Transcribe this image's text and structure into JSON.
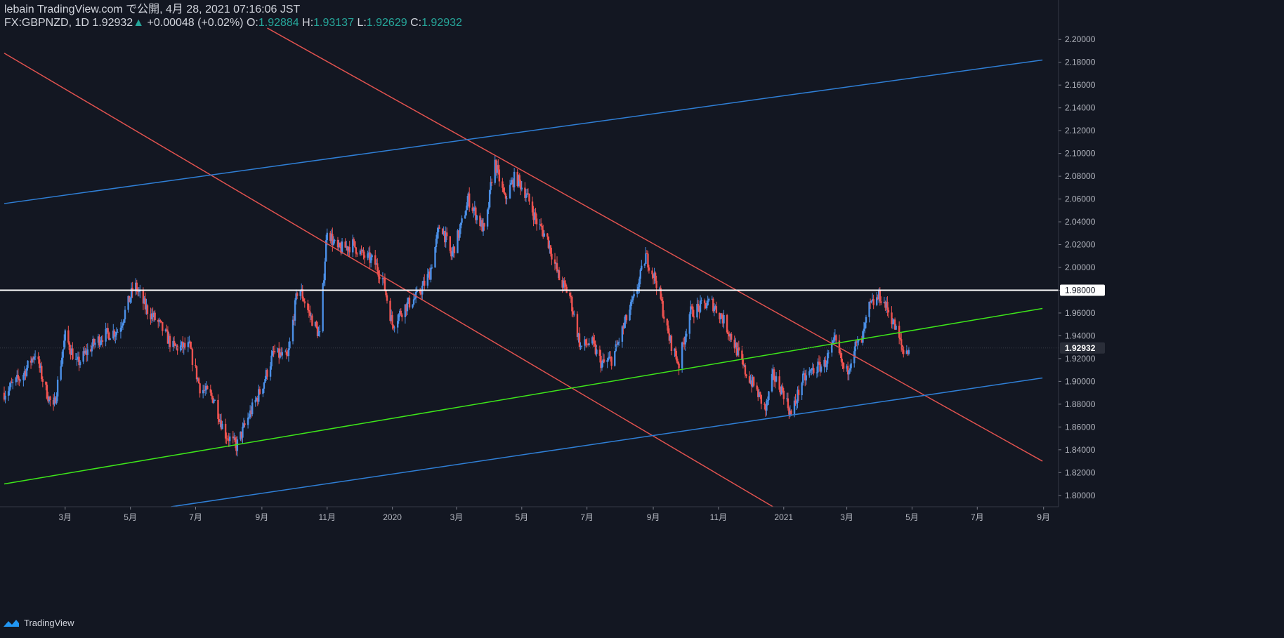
{
  "header": {
    "publish_line": "lebain TradingView.com で公開, 4月 28, 2021 07:16:06 JST",
    "symbol": "FX:GBPNZD, 1D",
    "last": "1.92932",
    "change": "+0.00048 (+0.02%)",
    "o_label": "O:",
    "o": "1.92884",
    "h_label": "H:",
    "h": "1.93137",
    "l_label": "L:",
    "l": "1.92629",
    "c_label": "C:",
    "c": "1.92932"
  },
  "footer": {
    "brand": "TradingView"
  },
  "colors": {
    "background": "#131722",
    "up": "#4b8fe6",
    "down": "#ef5350",
    "trend_red": "#e0524f",
    "trend_blue": "#2f7fd6",
    "trend_green": "#3ee61a",
    "horizontal": "#ffffff"
  },
  "chart_data": {
    "type": "candlestick",
    "symbol": "FX:GBPNZD",
    "interval": "1D",
    "ylim": [
      1.79,
      2.21
    ],
    "y_ticks": [
      "1.80000",
      "1.82000",
      "1.84000",
      "1.86000",
      "1.88000",
      "1.90000",
      "1.92000",
      "1.94000",
      "1.96000",
      "1.98000",
      "2.00000",
      "2.02000",
      "2.04000",
      "2.06000",
      "2.08000",
      "2.10000",
      "2.12000",
      "2.14000",
      "2.16000",
      "2.18000",
      "2.20000"
    ],
    "x_range": [
      "2019-01-03",
      "2021-09-15"
    ],
    "x_ticks": [
      {
        "label": "3月",
        "date": "2019-03-01"
      },
      {
        "label": "5月",
        "date": "2019-05-01"
      },
      {
        "label": "7月",
        "date": "2019-07-01"
      },
      {
        "label": "9月",
        "date": "2019-09-01"
      },
      {
        "label": "11月",
        "date": "2019-11-01"
      },
      {
        "label": "2020",
        "date": "2020-01-01"
      },
      {
        "label": "3月",
        "date": "2020-03-01"
      },
      {
        "label": "5月",
        "date": "2020-05-01"
      },
      {
        "label": "7月",
        "date": "2020-07-01"
      },
      {
        "label": "9月",
        "date": "2020-09-01"
      },
      {
        "label": "11月",
        "date": "2020-11-01"
      },
      {
        "label": "2021",
        "date": "2021-01-01"
      },
      {
        "label": "3月",
        "date": "2021-03-01"
      },
      {
        "label": "5月",
        "date": "2021-05-01"
      },
      {
        "label": "7月",
        "date": "2021-07-01"
      },
      {
        "label": "9月",
        "date": "2021-09-01"
      }
    ],
    "price_path": [
      [
        "2019-01-03",
        1.89
      ],
      [
        "2019-01-20",
        1.905
      ],
      [
        "2019-02-01",
        1.925
      ],
      [
        "2019-02-10",
        1.895
      ],
      [
        "2019-02-18",
        1.875
      ],
      [
        "2019-03-01",
        1.94
      ],
      [
        "2019-03-12",
        1.915
      ],
      [
        "2019-03-25",
        1.93
      ],
      [
        "2019-04-05",
        1.94
      ],
      [
        "2019-04-20",
        1.945
      ],
      [
        "2019-05-05",
        1.985
      ],
      [
        "2019-05-15",
        1.965
      ],
      [
        "2019-05-28",
        1.95
      ],
      [
        "2019-06-10",
        1.93
      ],
      [
        "2019-06-25",
        1.93
      ],
      [
        "2019-07-05",
        1.895
      ],
      [
        "2019-07-18",
        1.885
      ],
      [
        "2019-07-28",
        1.855
      ],
      [
        "2019-08-08",
        1.843
      ],
      [
        "2019-08-20",
        1.87
      ],
      [
        "2019-09-01",
        1.895
      ],
      [
        "2019-09-12",
        1.925
      ],
      [
        "2019-09-25",
        1.92
      ],
      [
        "2019-10-05",
        1.985
      ],
      [
        "2019-10-15",
        1.96
      ],
      [
        "2019-10-25",
        1.94
      ],
      [
        "2019-11-01",
        2.035
      ],
      [
        "2019-11-10",
        2.015
      ],
      [
        "2019-11-25",
        2.02
      ],
      [
        "2019-12-05",
        2.01
      ],
      [
        "2019-12-15",
        2.005
      ],
      [
        "2019-12-23",
        1.99
      ],
      [
        "2020-01-01",
        1.95
      ],
      [
        "2020-01-12",
        1.965
      ],
      [
        "2020-01-25",
        1.975
      ],
      [
        "2020-02-05",
        1.995
      ],
      [
        "2020-02-15",
        2.04
      ],
      [
        "2020-02-25",
        2.01
      ],
      [
        "2020-03-05",
        2.035
      ],
      [
        "2020-03-12",
        2.06
      ],
      [
        "2020-03-20",
        2.045
      ],
      [
        "2020-03-28",
        2.03
      ],
      [
        "2020-04-05",
        2.095
      ],
      [
        "2020-04-15",
        2.06
      ],
      [
        "2020-04-25",
        2.08
      ],
      [
        "2020-05-05",
        2.065
      ],
      [
        "2020-05-15",
        2.04
      ],
      [
        "2020-05-25",
        2.025
      ],
      [
        "2020-06-05",
        1.99
      ],
      [
        "2020-06-15",
        1.975
      ],
      [
        "2020-06-25",
        1.93
      ],
      [
        "2020-07-05",
        1.935
      ],
      [
        "2020-07-15",
        1.915
      ],
      [
        "2020-07-25",
        1.92
      ],
      [
        "2020-08-05",
        1.95
      ],
      [
        "2020-08-15",
        1.975
      ],
      [
        "2020-08-25",
        2.01
      ],
      [
        "2020-09-05",
        1.985
      ],
      [
        "2020-09-15",
        1.94
      ],
      [
        "2020-09-25",
        1.915
      ],
      [
        "2020-10-05",
        1.96
      ],
      [
        "2020-10-15",
        1.965
      ],
      [
        "2020-10-25",
        1.97
      ],
      [
        "2020-11-05",
        1.955
      ],
      [
        "2020-11-15",
        1.935
      ],
      [
        "2020-11-25",
        1.91
      ],
      [
        "2020-12-05",
        1.895
      ],
      [
        "2020-12-15",
        1.875
      ],
      [
        "2020-12-22",
        1.905
      ],
      [
        "2021-01-01",
        1.89
      ],
      [
        "2021-01-08",
        1.87
      ],
      [
        "2021-01-18",
        1.9
      ],
      [
        "2021-01-28",
        1.91
      ],
      [
        "2021-02-08",
        1.915
      ],
      [
        "2021-02-18",
        1.935
      ],
      [
        "2021-02-28",
        1.905
      ],
      [
        "2021-03-08",
        1.93
      ],
      [
        "2021-03-15",
        1.935
      ],
      [
        "2021-03-22",
        1.965
      ],
      [
        "2021-04-01",
        1.975
      ],
      [
        "2021-04-10",
        1.96
      ],
      [
        "2021-04-18",
        1.94
      ],
      [
        "2021-04-23",
        1.925
      ],
      [
        "2021-04-28",
        1.929
      ]
    ],
    "horizontal_lines": [
      {
        "price": 1.98,
        "color": "#ffffff",
        "label": "1.98000"
      }
    ],
    "trend_lines": [
      {
        "color": "#e0524f",
        "from": [
          "2019-01-03",
          2.188
        ],
        "to": [
          "2020-12-22",
          1.79
        ]
      },
      {
        "color": "#e0524f",
        "from": [
          "2019-09-06",
          2.21
        ],
        "to": [
          "2021-08-31",
          1.83
        ]
      },
      {
        "color": "#2f7fd6",
        "from": [
          "2019-01-03",
          2.056
        ],
        "to": [
          "2021-08-31",
          2.182
        ]
      },
      {
        "color": "#2f7fd6",
        "from": [
          "2019-06-08",
          1.79
        ],
        "to": [
          "2021-08-31",
          1.903
        ]
      },
      {
        "color": "#3ee61a",
        "from": [
          "2019-01-03",
          1.81
        ],
        "to": [
          "2021-08-31",
          1.964
        ]
      }
    ],
    "last_price": "1.92932",
    "grid": false
  }
}
